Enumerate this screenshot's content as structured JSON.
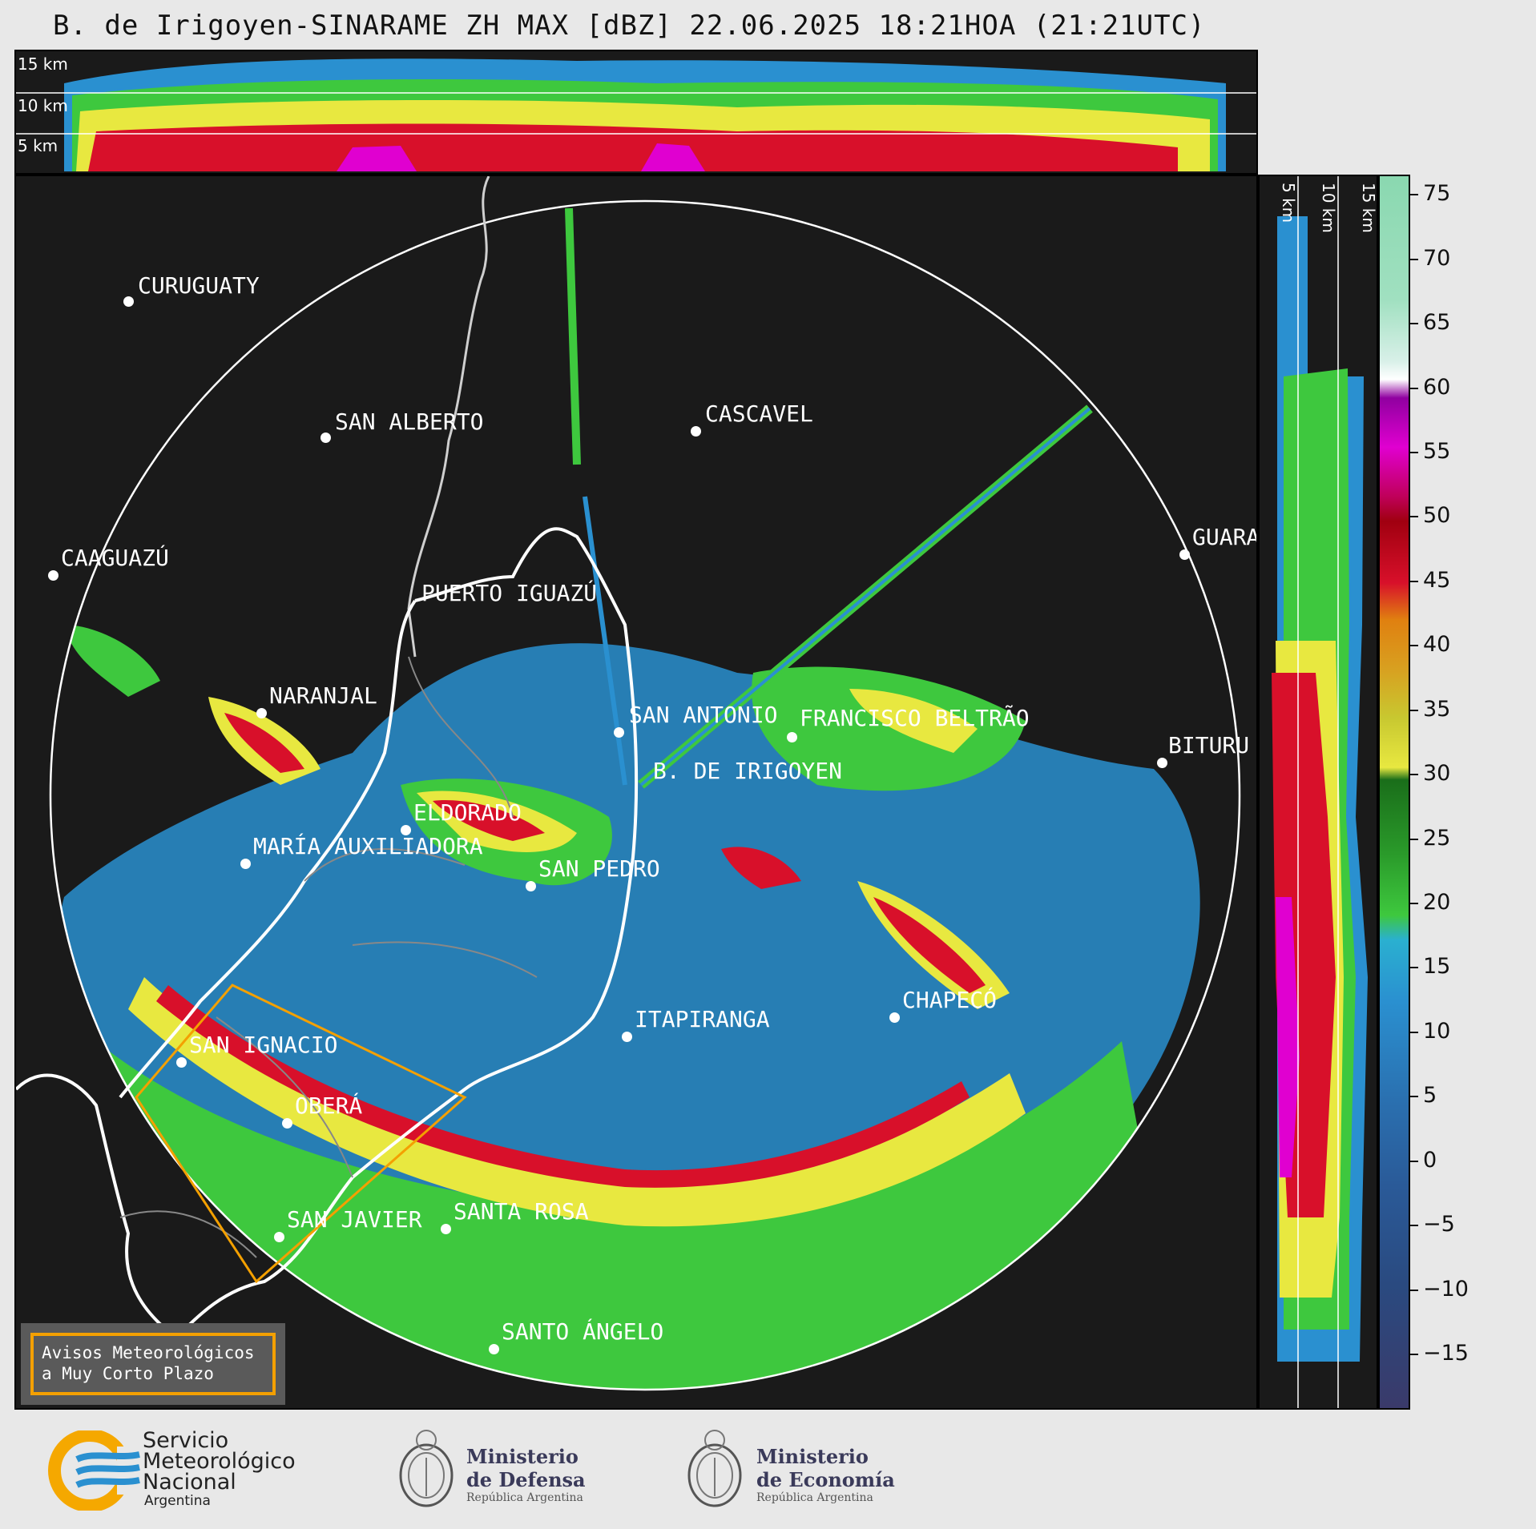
{
  "title": "B. de Irigoyen-SINARAME ZH MAX [dBZ] 22.06.2025 18:21HOA (21:21UTC)",
  "top_panel": {
    "km_labels": [
      "15 km",
      "10 km",
      "5 km"
    ]
  },
  "side_panel": {
    "km_labels": [
      "5 km",
      "10 km",
      "15 km"
    ]
  },
  "colorbar": {
    "ticks": [
      "75",
      "70",
      "65",
      "60",
      "55",
      "50",
      "45",
      "40",
      "35",
      "30",
      "25",
      "20",
      "15",
      "10",
      "5",
      "0",
      "−5",
      "−10",
      "−15"
    ]
  },
  "cities": [
    {
      "name": "CURUGUATY"
    },
    {
      "name": "SAN ALBERTO"
    },
    {
      "name": "CASCAVEL"
    },
    {
      "name": "CAAGUAZÚ"
    },
    {
      "name": "GUARA"
    },
    {
      "name": "PUERTO IGUAZÚ"
    },
    {
      "name": "NARANJAL"
    },
    {
      "name": "SAN ANTONIO"
    },
    {
      "name": "FRANCISCO BELTRÃO"
    },
    {
      "name": "BITURU"
    },
    {
      "name": "B. DE IRIGOYEN"
    },
    {
      "name": "ELDORADO"
    },
    {
      "name": "MARÍA AUXILIADORA"
    },
    {
      "name": "SAN PEDRO"
    },
    {
      "name": "CHAPECÓ"
    },
    {
      "name": "ITAPIRANGA"
    },
    {
      "name": "SAN IGNACIO"
    },
    {
      "name": "OBERÁ"
    },
    {
      "name": "SAN JAVIER"
    },
    {
      "name": "SANTA ROSA"
    },
    {
      "name": "SANTO ÁNGELO"
    }
  ],
  "notice": {
    "line1": "Avisos Meteorológicos",
    "line2": "a Muy Corto Plazo"
  },
  "logos": {
    "smn": {
      "line1": "Servicio",
      "line2": "Meteorológico",
      "line3": "Nacional",
      "line4": "Argentina"
    },
    "defensa": {
      "line1": "Ministerio",
      "line2": "de Defensa",
      "line3": "República Argentina"
    },
    "economia": {
      "line1": "Ministerio",
      "line2": "de Economía",
      "line3": "República Argentina"
    }
  },
  "colors": {
    "background": "#1a1a1a",
    "blue": "#2a90d0",
    "green": "#3ec83e",
    "yellow": "#e8e840",
    "red": "#d8102a",
    "magenta": "#e000d0",
    "border_orange": "#f4a000"
  }
}
